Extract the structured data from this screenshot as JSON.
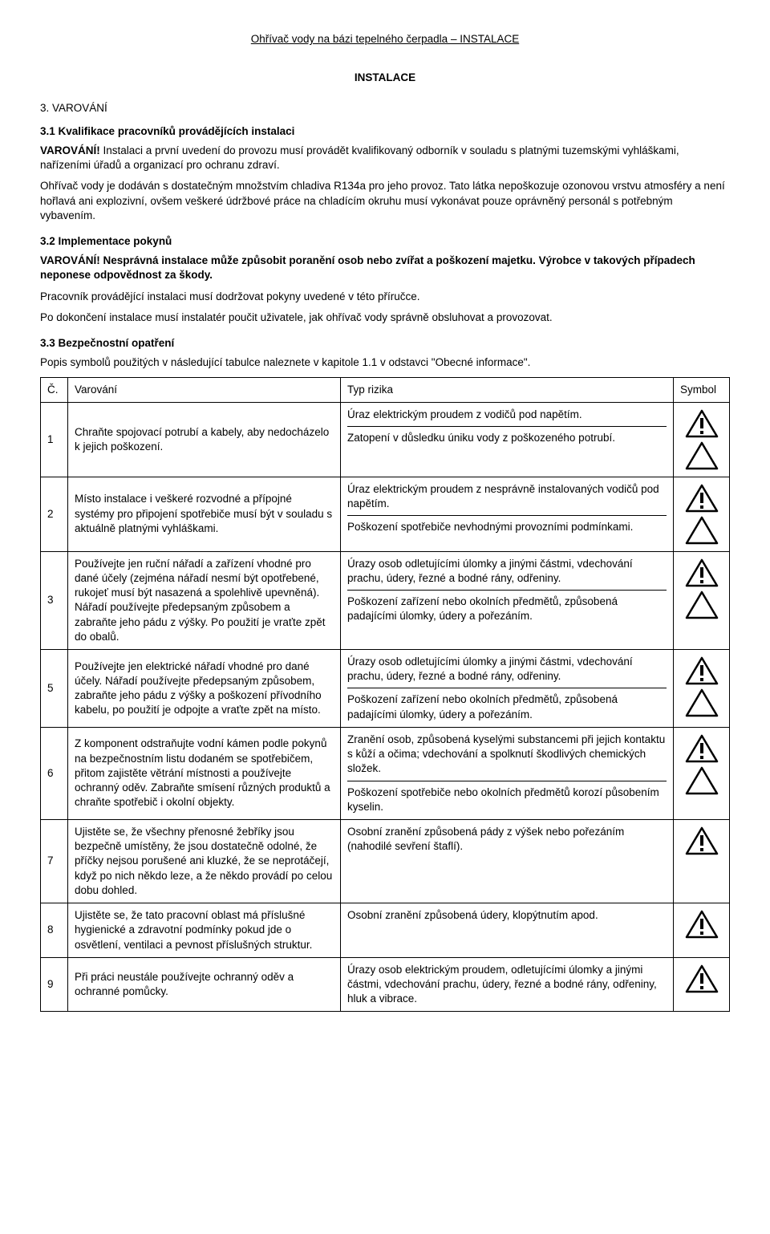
{
  "header": "Ohřívač vody na bázi tepelného čerpadla – INSTALACE",
  "title_center": "INSTALACE",
  "s3": "3. VAROVÁNÍ",
  "s31": "3.1 Kvalifikace pracovníků provádějících instalaci",
  "p1": "VAROVÁNÍ! Instalaci a první uvedení do provozu musí provádět kvalifikovaný odborník v souladu s platnými tuzemskými vyhláškami, nařízeními úřadů a organizací pro ochranu zdraví.",
  "p2": "Ohřívač vody je dodáván s dostatečným množstvím chladiva R134a pro jeho provoz. Tato látka nepoškozuje ozonovou vrstvu atmosféry a není hořlavá ani explozivní, ovšem veškeré údržbové práce na chladícím okruhu musí vykonávat pouze oprávněný personál s potřebným vybavením.",
  "s32": "3.2 Implementace pokynů",
  "p3": "VAROVÁNÍ! Nesprávná instalace může způsobit poranění osob nebo zvířat a poškození majetku. Výrobce v takových případech neponese odpovědnost za škody.",
  "p4": "Pracovník provádějící instalaci musí dodržovat pokyny uvedené v této příručce.",
  "p5": "Po dokončení instalace musí instalatér poučit uživatele, jak ohřívač vody správně obsluhovat a provozovat.",
  "s33": "3.3 Bezpečnostní opatření",
  "p6": "Popis symbolů použitých v následující tabulce naleznete v kapitole 1.1 v odstavci \"Obecné informace\".",
  "th": {
    "num": "Č.",
    "warn": "Varování",
    "risk": "Typ rizika",
    "sym": "Symbol"
  },
  "rows": [
    {
      "n": "1",
      "warn": "Chraňte spojovací potrubí a kabely, aby nedocházelo k jejich poškození.",
      "risks": [
        {
          "text": "Úraz elektrickým proudem z vodičů pod napětím.",
          "sym": "excl"
        },
        {
          "text": "Zatopení v důsledku úniku vody z poškozeného potrubí.",
          "sym": "plain"
        }
      ]
    },
    {
      "n": "2",
      "warn": "Místo instalace i veškeré rozvodné a přípojné systémy pro připojení spotřebiče musí být v souladu s aktuálně platnými vyhláškami.",
      "risks": [
        {
          "text": "Úraz elektrickým proudem z nesprávně instalovaných vodičů pod napětím.",
          "sym": "excl"
        },
        {
          "text": "Poškození spotřebiče nevhodnými provozními podmínkami.",
          "sym": "plain"
        }
      ]
    },
    {
      "n": "3",
      "warn": "Používejte jen ruční nářadí a zařízení vhodné pro dané účely (zejména nářadí nesmí být opotřebené, rukojeť musí být nasazená a spolehlivě upevněná). Nářadí používejte předepsaným způsobem a zabraňte jeho pádu z výšky.  Po použití je vraťte zpět do obalů.",
      "risks": [
        {
          "text": "Úrazy osob odletujícími úlomky a jinými částmi, vdechování prachu, údery, řezné a bodné rány, odřeniny.",
          "sym": "excl"
        },
        {
          "text": "Poškození zařízení nebo okolních předmětů, způsobená padajícími úlomky, údery a pořezáním.",
          "sym": "plain"
        }
      ]
    },
    {
      "n": "5",
      "warn": "Používejte jen elektrické nářadí vhodné pro dané účely. Nářadí používejte předepsaným způsobem, zabraňte jeho pádu z výšky a poškození přívodního kabelu, po použití je odpojte a vraťte zpět na místo.",
      "risks": [
        {
          "text": "Úrazy osob odletujícími úlomky a jinými částmi, vdechování prachu, údery, řezné a bodné rány, odřeniny.",
          "sym": "excl"
        },
        {
          "text": "Poškození zařízení nebo okolních předmětů, způsobená padajícími úlomky, údery a pořezáním.",
          "sym": "plain"
        }
      ]
    },
    {
      "n": "6",
      "warn": "Z komponent odstraňujte vodní kámen podle pokynů na bezpečnostním listu dodaném se spotřebičem, přitom zajistěte větrání místnosti a používejte ochranný oděv. Zabraňte smísení různých produktů a chraňte spotřebič i okolní objekty.",
      "risks": [
        {
          "text": "Zranění osob, způsobená kyselými substancemi při jejich kontaktu s kůží a očima; vdechování a spolknutí škodlivých chemických složek.",
          "sym": "excl"
        },
        {
          "text": "Poškození spotřebiče nebo okolních předmětů korozí působením kyselin.",
          "sym": "plain"
        }
      ]
    },
    {
      "n": "7",
      "warn": "Ujistěte se, že všechny přenosné žebříky jsou bezpečně umístěny, že jsou dostatečně odolné, že příčky nejsou porušené ani kluzké, že se neprotáčejí, když po nich někdo leze, a že někdo provádí po celou dobu dohled.",
      "risks": [
        {
          "text": "Osobní zranění způsobená pády z výšek nebo pořezáním (nahodilé sevření štaflí).",
          "sym": "excl"
        }
      ]
    },
    {
      "n": "8",
      "warn": "Ujistěte se, že tato pracovní oblast má příslušné hygienické a zdravotní podmínky pokud jde o osvětlení, ventilaci a pevnost příslušných struktur.",
      "risks": [
        {
          "text": "Osobní zranění způsobená údery, klopýtnutím apod.",
          "sym": "excl"
        }
      ]
    },
    {
      "n": "9",
      "warn": "Při práci neustále používejte ochranný oděv a ochranné pomůcky.",
      "risks": [
        {
          "text": "Úrazy osob elektrickým proudem, odletujícími úlomky a jinými částmi, vdechování prachu, údery, řezné a bodné rány, odřeniny, hluk a vibrace.",
          "sym": "excl"
        }
      ]
    }
  ],
  "colors": {
    "tri_stroke": "#000000",
    "tri_fill_excl": "#000000",
    "tri_fill_plain": "none"
  }
}
